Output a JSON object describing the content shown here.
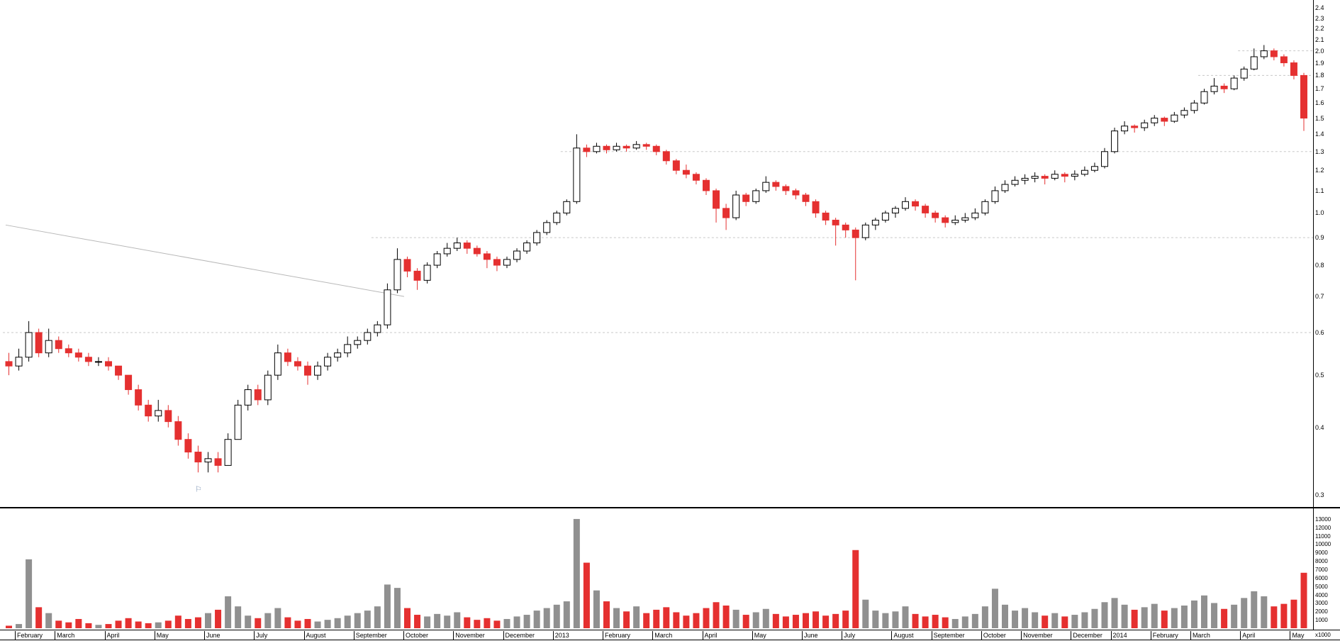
{
  "chart_data": {
    "type": "candlestick",
    "description": "Weekly OHLC candlestick price chart with volume sub-panel, Feb 2012 - May 2014",
    "price_axis": {
      "scale": "log",
      "range": [
        0.3,
        2.47
      ],
      "ticks": [
        2.4,
        2.3,
        2.2,
        2.1,
        2.0,
        1.9,
        1.8,
        1.7,
        1.6,
        1.5,
        1.4,
        1.3,
        1.2,
        1.1,
        1.0,
        0.9,
        0.8,
        0.7,
        0.6,
        0.5,
        0.4,
        0.3
      ]
    },
    "volume_axis": {
      "ticks": [
        13000,
        12000,
        11000,
        10000,
        9000,
        8000,
        7000,
        6000,
        5000,
        4000,
        3000,
        2000,
        1000
      ],
      "unit_label": "x1000",
      "max": 13500
    },
    "x_axis": {
      "month_labels": [
        {
          "label": "February",
          "index": 1
        },
        {
          "label": "March",
          "index": 5
        },
        {
          "label": "April",
          "index": 10
        },
        {
          "label": "May",
          "index": 15
        },
        {
          "label": "June",
          "index": 20
        },
        {
          "label": "July",
          "index": 25
        },
        {
          "label": "August",
          "index": 30
        },
        {
          "label": "September",
          "index": 35
        },
        {
          "label": "October",
          "index": 40
        },
        {
          "label": "November",
          "index": 45
        },
        {
          "label": "December",
          "index": 50
        },
        {
          "label": "2013",
          "index": 55
        },
        {
          "label": "February",
          "index": 60
        },
        {
          "label": "March",
          "index": 65
        },
        {
          "label": "April",
          "index": 70
        },
        {
          "label": "May",
          "index": 75
        },
        {
          "label": "June",
          "index": 80
        },
        {
          "label": "July",
          "index": 84
        },
        {
          "label": "August",
          "index": 89
        },
        {
          "label": "September",
          "index": 93
        },
        {
          "label": "October",
          "index": 98
        },
        {
          "label": "November",
          "index": 102
        },
        {
          "label": "December",
          "index": 107
        },
        {
          "label": "2014",
          "index": 111
        },
        {
          "label": "February",
          "index": 115
        },
        {
          "label": "March",
          "index": 119
        },
        {
          "label": "April",
          "index": 124
        },
        {
          "label": "May",
          "index": 129
        }
      ]
    },
    "gridlines": [
      {
        "price": 0.6,
        "from_index": 0
      },
      {
        "price": 0.9,
        "from_index": 37
      },
      {
        "price": 1.3,
        "from_index": 56
      },
      {
        "price": 1.8,
        "from_index": 120
      },
      {
        "price": 2.0,
        "from_index": 124
      }
    ],
    "trendline": {
      "from": {
        "index": 0,
        "price": 0.95
      },
      "to": {
        "index": 40,
        "price": 0.7
      }
    },
    "marker": {
      "index": 19,
      "price": 0.315,
      "symbol": "flag"
    },
    "colors": {
      "up_fill": "#ffffff",
      "up_border": "#000000",
      "down_fill": "#e53030",
      "down_border": "#e53030",
      "volume_up": "#909090",
      "volume_down": "#e53030",
      "grid": "#c8c8c8",
      "trendline": "#b8b8b8",
      "marker": "#7e95b5"
    },
    "candles_ohlc": [
      [
        0.53,
        0.55,
        0.5,
        0.52
      ],
      [
        0.52,
        0.56,
        0.51,
        0.54
      ],
      [
        0.54,
        0.63,
        0.53,
        0.6
      ],
      [
        0.6,
        0.61,
        0.54,
        0.55
      ],
      [
        0.55,
        0.61,
        0.54,
        0.58
      ],
      [
        0.58,
        0.59,
        0.55,
        0.56
      ],
      [
        0.56,
        0.57,
        0.54,
        0.55
      ],
      [
        0.55,
        0.56,
        0.53,
        0.54
      ],
      [
        0.54,
        0.55,
        0.52,
        0.53
      ],
      [
        0.53,
        0.54,
        0.52,
        0.53
      ],
      [
        0.53,
        0.54,
        0.51,
        0.52
      ],
      [
        0.52,
        0.52,
        0.49,
        0.5
      ],
      [
        0.5,
        0.5,
        0.46,
        0.47
      ],
      [
        0.47,
        0.48,
        0.43,
        0.44
      ],
      [
        0.44,
        0.45,
        0.41,
        0.42
      ],
      [
        0.42,
        0.45,
        0.41,
        0.43
      ],
      [
        0.43,
        0.44,
        0.4,
        0.41
      ],
      [
        0.41,
        0.42,
        0.37,
        0.38
      ],
      [
        0.38,
        0.39,
        0.35,
        0.36
      ],
      [
        0.36,
        0.37,
        0.33,
        0.345
      ],
      [
        0.345,
        0.36,
        0.33,
        0.35
      ],
      [
        0.35,
        0.36,
        0.33,
        0.34
      ],
      [
        0.34,
        0.39,
        0.34,
        0.38
      ],
      [
        0.38,
        0.45,
        0.38,
        0.44
      ],
      [
        0.44,
        0.48,
        0.43,
        0.47
      ],
      [
        0.47,
        0.48,
        0.44,
        0.45
      ],
      [
        0.45,
        0.51,
        0.44,
        0.5
      ],
      [
        0.5,
        0.57,
        0.49,
        0.55
      ],
      [
        0.55,
        0.56,
        0.52,
        0.53
      ],
      [
        0.53,
        0.54,
        0.51,
        0.52
      ],
      [
        0.52,
        0.53,
        0.48,
        0.5
      ],
      [
        0.5,
        0.53,
        0.49,
        0.52
      ],
      [
        0.52,
        0.55,
        0.51,
        0.54
      ],
      [
        0.54,
        0.56,
        0.53,
        0.55
      ],
      [
        0.55,
        0.59,
        0.54,
        0.57
      ],
      [
        0.57,
        0.59,
        0.56,
        0.58
      ],
      [
        0.58,
        0.61,
        0.57,
        0.6
      ],
      [
        0.6,
        0.63,
        0.59,
        0.62
      ],
      [
        0.62,
        0.74,
        0.61,
        0.72
      ],
      [
        0.72,
        0.86,
        0.71,
        0.82
      ],
      [
        0.82,
        0.83,
        0.76,
        0.78
      ],
      [
        0.78,
        0.79,
        0.72,
        0.75
      ],
      [
        0.75,
        0.81,
        0.74,
        0.8
      ],
      [
        0.8,
        0.85,
        0.79,
        0.84
      ],
      [
        0.84,
        0.88,
        0.83,
        0.86
      ],
      [
        0.86,
        0.9,
        0.85,
        0.88
      ],
      [
        0.88,
        0.89,
        0.84,
        0.86
      ],
      [
        0.86,
        0.87,
        0.83,
        0.84
      ],
      [
        0.84,
        0.85,
        0.79,
        0.82
      ],
      [
        0.82,
        0.83,
        0.78,
        0.8
      ],
      [
        0.8,
        0.83,
        0.79,
        0.82
      ],
      [
        0.82,
        0.86,
        0.81,
        0.85
      ],
      [
        0.85,
        0.89,
        0.84,
        0.88
      ],
      [
        0.88,
        0.93,
        0.87,
        0.92
      ],
      [
        0.92,
        0.97,
        0.91,
        0.96
      ],
      [
        0.96,
        1.01,
        0.95,
        1.0
      ],
      [
        1.0,
        1.06,
        0.99,
        1.05
      ],
      [
        1.05,
        1.4,
        1.04,
        1.32
      ],
      [
        1.32,
        1.34,
        1.27,
        1.3
      ],
      [
        1.3,
        1.35,
        1.29,
        1.33
      ],
      [
        1.33,
        1.34,
        1.29,
        1.31
      ],
      [
        1.31,
        1.35,
        1.3,
        1.33
      ],
      [
        1.33,
        1.34,
        1.3,
        1.32
      ],
      [
        1.32,
        1.36,
        1.31,
        1.34
      ],
      [
        1.34,
        1.35,
        1.31,
        1.33
      ],
      [
        1.33,
        1.34,
        1.28,
        1.3
      ],
      [
        1.3,
        1.31,
        1.23,
        1.25
      ],
      [
        1.25,
        1.26,
        1.18,
        1.2
      ],
      [
        1.2,
        1.23,
        1.16,
        1.18
      ],
      [
        1.18,
        1.19,
        1.13,
        1.15
      ],
      [
        1.15,
        1.16,
        1.08,
        1.1
      ],
      [
        1.1,
        1.11,
        0.96,
        1.02
      ],
      [
        1.02,
        1.04,
        0.93,
        0.98
      ],
      [
        0.98,
        1.1,
        0.97,
        1.08
      ],
      [
        1.08,
        1.09,
        1.03,
        1.05
      ],
      [
        1.05,
        1.11,
        1.04,
        1.1
      ],
      [
        1.1,
        1.17,
        1.09,
        1.14
      ],
      [
        1.14,
        1.15,
        1.1,
        1.12
      ],
      [
        1.12,
        1.13,
        1.08,
        1.1
      ],
      [
        1.1,
        1.11,
        1.06,
        1.08
      ],
      [
        1.08,
        1.09,
        1.03,
        1.05
      ],
      [
        1.05,
        1.06,
        0.98,
        1.0
      ],
      [
        1.0,
        1.01,
        0.95,
        0.97
      ],
      [
        0.97,
        0.98,
        0.87,
        0.95
      ],
      [
        0.95,
        0.96,
        0.9,
        0.93
      ],
      [
        0.93,
        0.94,
        0.75,
        0.9
      ],
      [
        0.9,
        0.96,
        0.89,
        0.95
      ],
      [
        0.95,
        0.98,
        0.93,
        0.97
      ],
      [
        0.97,
        1.01,
        0.96,
        1.0
      ],
      [
        1.0,
        1.03,
        0.98,
        1.02
      ],
      [
        1.02,
        1.07,
        1.01,
        1.05
      ],
      [
        1.05,
        1.06,
        1.01,
        1.03
      ],
      [
        1.03,
        1.04,
        0.98,
        1.0
      ],
      [
        1.0,
        1.01,
        0.96,
        0.98
      ],
      [
        0.98,
        0.99,
        0.94,
        0.96
      ],
      [
        0.96,
        0.99,
        0.95,
        0.97
      ],
      [
        0.97,
        1.0,
        0.96,
        0.98
      ],
      [
        0.98,
        1.02,
        0.97,
        1.0
      ],
      [
        1.0,
        1.06,
        0.99,
        1.05
      ],
      [
        1.05,
        1.12,
        1.04,
        1.1
      ],
      [
        1.1,
        1.15,
        1.09,
        1.13
      ],
      [
        1.13,
        1.17,
        1.12,
        1.15
      ],
      [
        1.15,
        1.18,
        1.13,
        1.16
      ],
      [
        1.16,
        1.19,
        1.14,
        1.17
      ],
      [
        1.17,
        1.18,
        1.13,
        1.16
      ],
      [
        1.16,
        1.2,
        1.15,
        1.18
      ],
      [
        1.18,
        1.19,
        1.14,
        1.17
      ],
      [
        1.17,
        1.2,
        1.15,
        1.18
      ],
      [
        1.18,
        1.22,
        1.17,
        1.2
      ],
      [
        1.2,
        1.24,
        1.19,
        1.22
      ],
      [
        1.22,
        1.32,
        1.21,
        1.3
      ],
      [
        1.3,
        1.44,
        1.29,
        1.42
      ],
      [
        1.42,
        1.48,
        1.4,
        1.45
      ],
      [
        1.45,
        1.46,
        1.41,
        1.44
      ],
      [
        1.44,
        1.49,
        1.42,
        1.47
      ],
      [
        1.47,
        1.52,
        1.45,
        1.5
      ],
      [
        1.5,
        1.51,
        1.45,
        1.48
      ],
      [
        1.48,
        1.54,
        1.47,
        1.52
      ],
      [
        1.52,
        1.57,
        1.5,
        1.55
      ],
      [
        1.55,
        1.62,
        1.53,
        1.6
      ],
      [
        1.6,
        1.7,
        1.59,
        1.68
      ],
      [
        1.68,
        1.78,
        1.66,
        1.72
      ],
      [
        1.72,
        1.74,
        1.67,
        1.7
      ],
      [
        1.7,
        1.8,
        1.69,
        1.78
      ],
      [
        1.78,
        1.87,
        1.76,
        1.85
      ],
      [
        1.85,
        2.02,
        1.84,
        1.95
      ],
      [
        1.95,
        2.05,
        1.93,
        2.0
      ],
      [
        2.0,
        2.02,
        1.92,
        1.95
      ],
      [
        1.95,
        1.97,
        1.87,
        1.9
      ],
      [
        1.9,
        1.92,
        1.77,
        1.8
      ],
      [
        1.8,
        1.82,
        1.42,
        1.5
      ]
    ],
    "volumes": [
      300,
      500,
      8200,
      2500,
      1800,
      900,
      700,
      1100,
      600,
      400,
      500,
      900,
      1200,
      800,
      600,
      700,
      900,
      1500,
      1100,
      1300,
      1800,
      2200,
      3800,
      2600,
      1500,
      1200,
      1800,
      2400,
      1300,
      900,
      1100,
      800,
      1000,
      1200,
      1500,
      1800,
      2100,
      2600,
      5200,
      4800,
      2400,
      1600,
      1400,
      1700,
      1500,
      1900,
      1300,
      1000,
      1200,
      900,
      1100,
      1400,
      1600,
      2100,
      2400,
      2800,
      3200,
      13000,
      7800,
      4500,
      3200,
      2400,
      2000,
      2600,
      1800,
      2200,
      2500,
      1900,
      1500,
      1800,
      2400,
      3100,
      2700,
      2200,
      1600,
      1900,
      2300,
      1700,
      1400,
      1600,
      1800,
      2000,
      1500,
      1700,
      2100,
      9300,
      3400,
      2100,
      1800,
      2000,
      2600,
      1700,
      1400,
      1600,
      1300,
      1100,
      1400,
      1700,
      2600,
      4700,
      2800,
      2100,
      2400,
      1900,
      1500,
      1800,
      1400,
      1600,
      1900,
      2300,
      3100,
      3600,
      2800,
      2200,
      2500,
      2900,
      2100,
      2400,
      2700,
      3300,
      3900,
      3000,
      2300,
      2800,
      3600,
      4400,
      3800,
      2600,
      2900,
      3400,
      6600
    ]
  }
}
